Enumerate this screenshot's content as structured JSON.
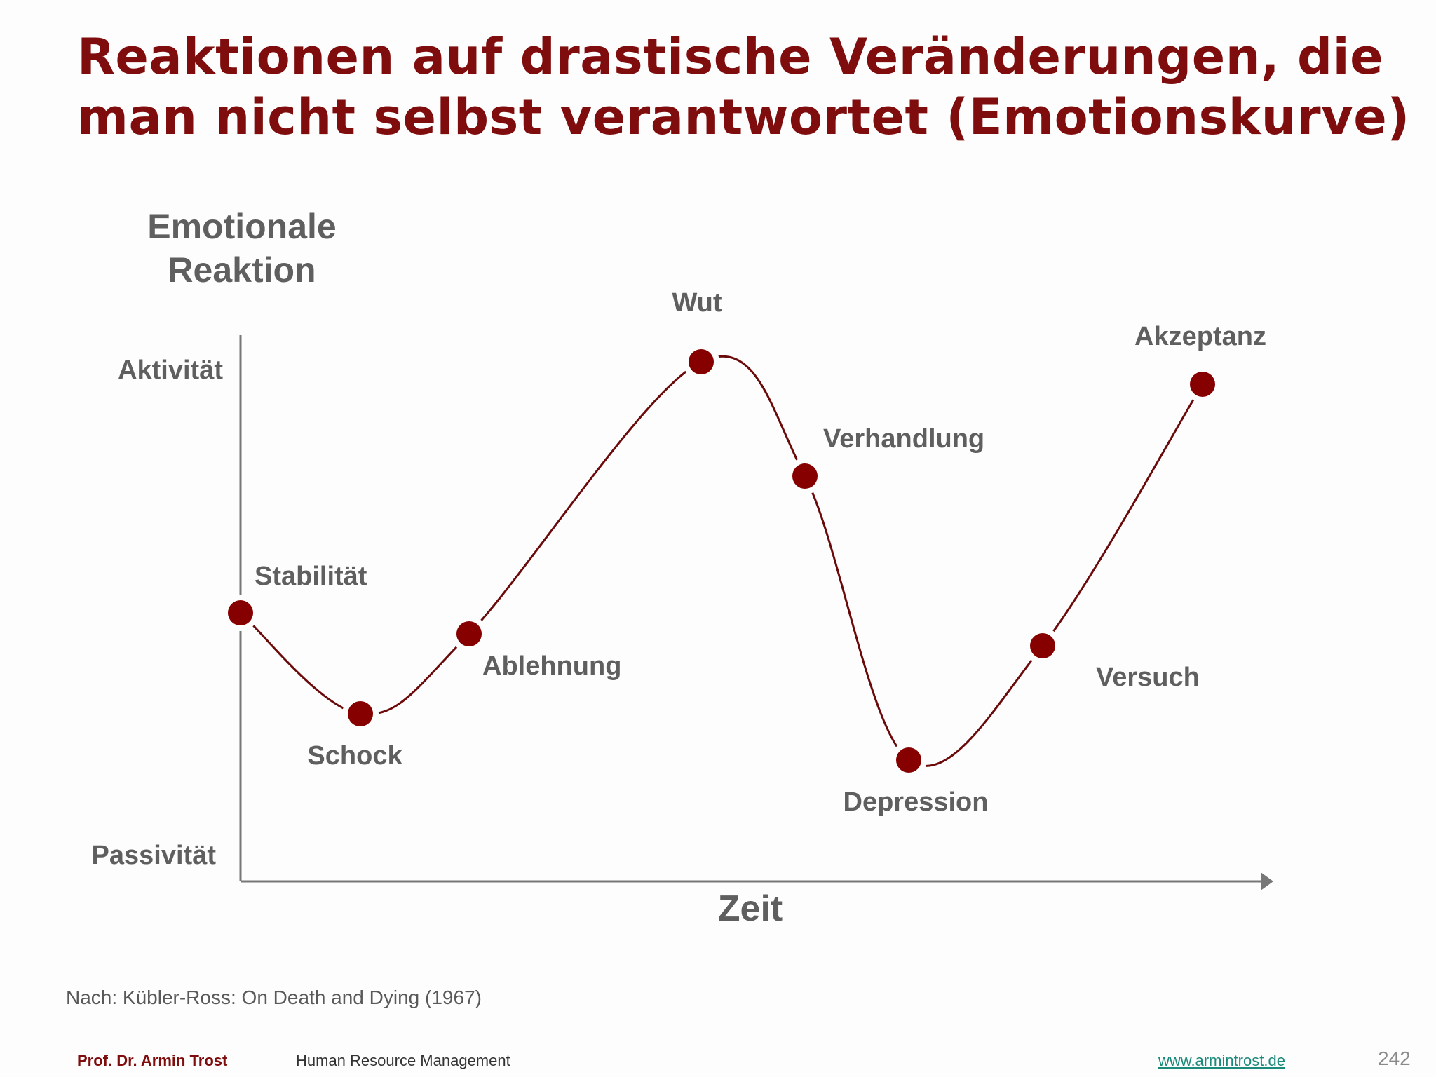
{
  "slide": {
    "title_line1": "Reaktionen auf drastische Veränderungen, die",
    "title_line2": "man nicht selbst verantwortet (Emotionskurve)"
  },
  "diagram": {
    "y_axis_label_line1": "Emotionale",
    "y_axis_label_line2": "Reaktion",
    "y_top_label": "Aktivität",
    "y_bottom_label": "Passivität",
    "x_axis_label": "Zeit",
    "stages": [
      {
        "name": "Stabilität",
        "order": 1
      },
      {
        "name": "Schock",
        "order": 2
      },
      {
        "name": "Ablehnung",
        "order": 3
      },
      {
        "name": "Wut",
        "order": 4
      },
      {
        "name": "Verhandlung",
        "order": 5
      },
      {
        "name": "Depression",
        "order": 6
      },
      {
        "name": "Versuch",
        "order": 7
      },
      {
        "name": "Akzeptanz",
        "order": 8
      }
    ],
    "curve_color": "#6b0a0a",
    "point_color": "#860000",
    "axis_color": "#777777"
  },
  "source_note": "Nach: Kübler-Ross: On Death and Dying (1967)",
  "footer": {
    "author": "Prof. Dr. Armin Trost",
    "course": "Human Resource Management",
    "website": "www.armintrost.de",
    "page_number": "242"
  }
}
